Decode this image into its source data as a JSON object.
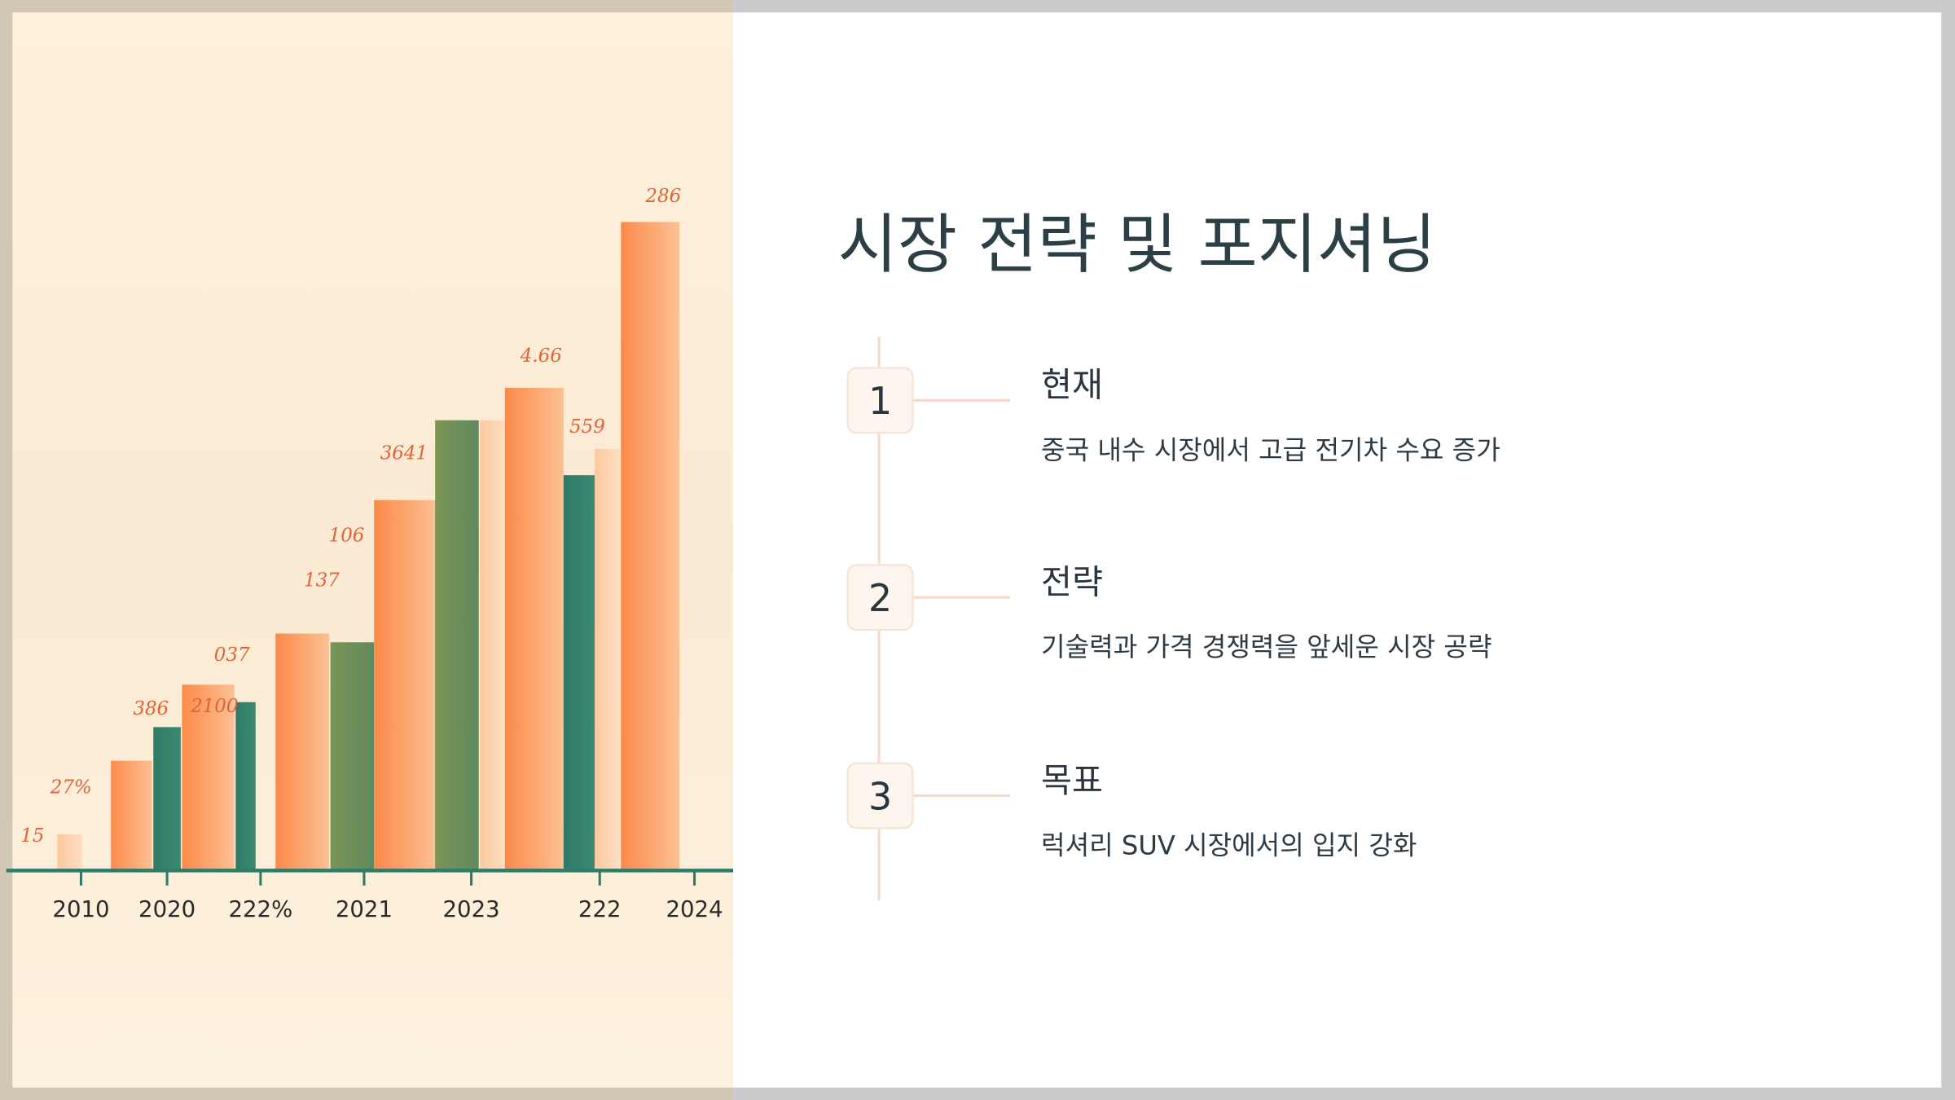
{
  "title": "시장 전략 및 포지셔닝",
  "steps": [
    {
      "number": "1",
      "heading": "현재",
      "description": "중국 내수 시장에서 고급 전기차 수요 증가"
    },
    {
      "number": "2",
      "heading": "전략",
      "description": "기술력과 가격 경쟁력을 앞세운 시장 공략"
    },
    {
      "number": "3",
      "heading": "목표",
      "description": "럭셔리 SUV 시장에서의 입지 강화"
    }
  ],
  "illustration": {
    "top_labels": [
      "15",
      "27%",
      "386",
      "2100",
      "037",
      "137",
      "106",
      "3641",
      "4.66",
      "559",
      "286"
    ],
    "axis_labels": [
      "2010",
      "2020",
      "222%",
      "2021",
      "2023",
      "222",
      "2024"
    ]
  }
}
